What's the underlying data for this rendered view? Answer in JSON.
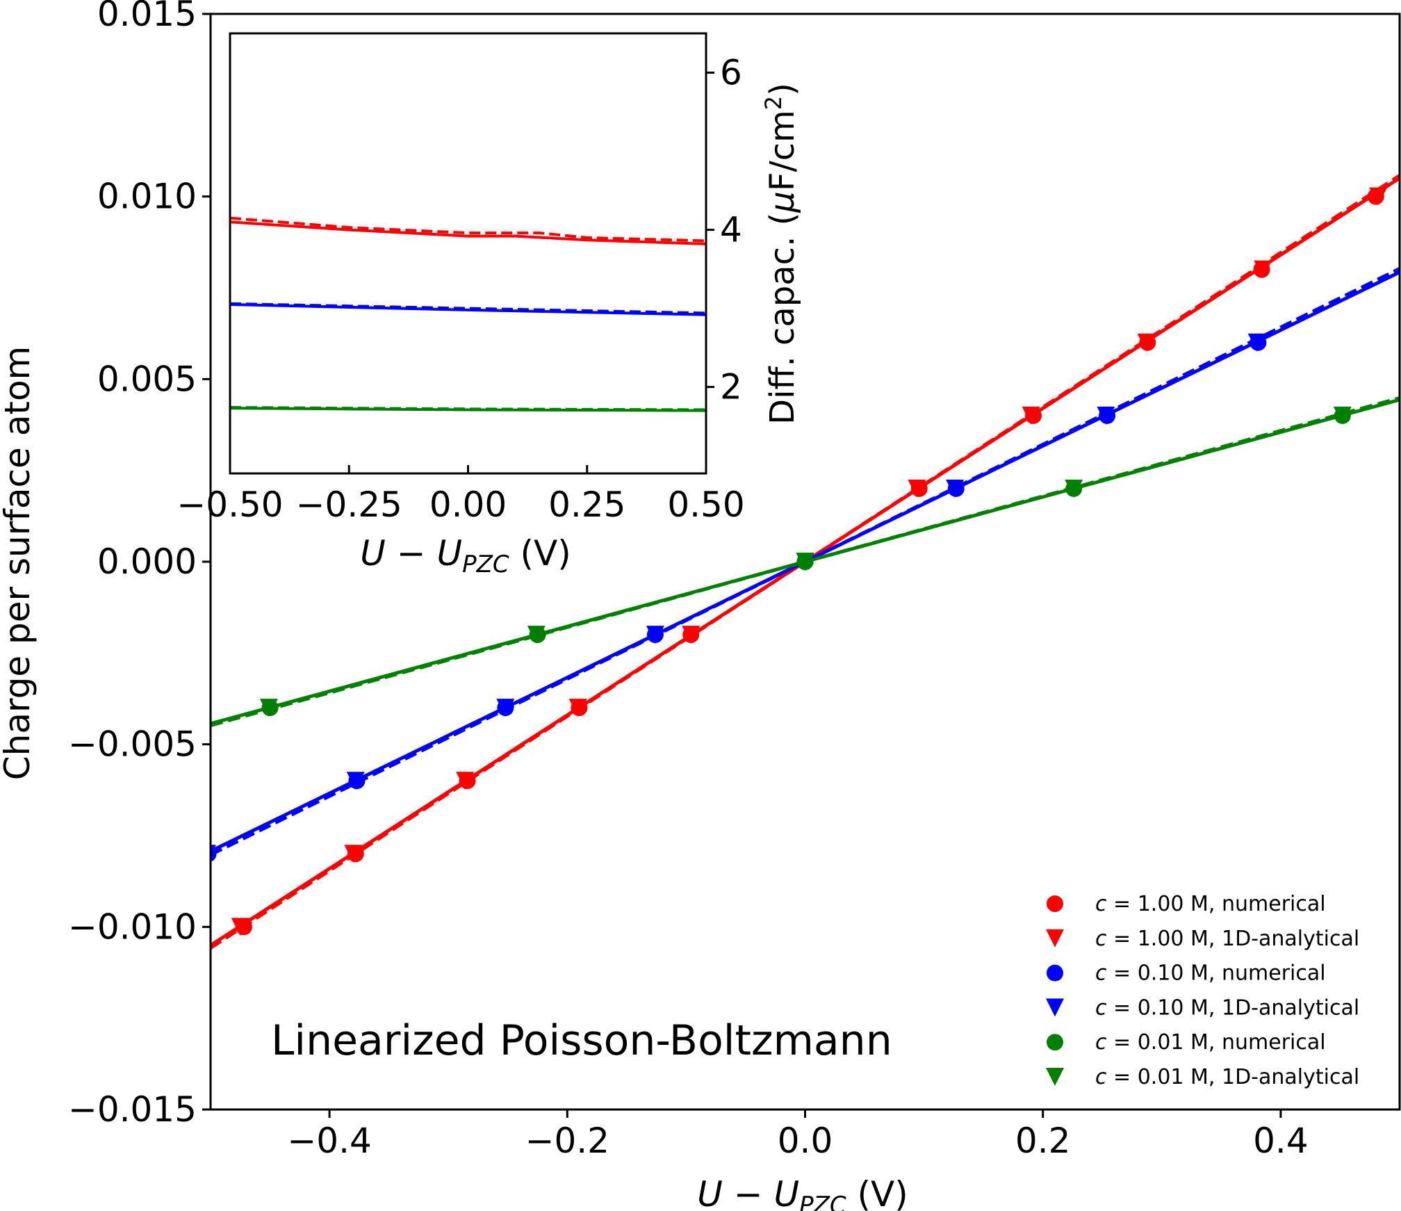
{
  "chart_data": [
    {
      "type": "line",
      "title": "",
      "annotation": "Linearized Poisson-Boltzmann",
      "xlabel": "U − U_PZC (V)",
      "xlabel_main": "U − U",
      "xlabel_sub": "PZC",
      "xlabel_unit": " (V)",
      "ylabel": "Charge per surface atom",
      "xlim": [
        -0.5,
        0.5
      ],
      "ylim": [
        -0.015,
        0.015
      ],
      "xticks": [
        -0.4,
        -0.2,
        0.0,
        0.2,
        0.4
      ],
      "xtick_labels": [
        "−0.4",
        "−0.2",
        "0.0",
        "0.2",
        "0.4"
      ],
      "yticks": [
        -0.015,
        -0.01,
        -0.005,
        0.0,
        0.005,
        0.01,
        0.015
      ],
      "ytick_labels": [
        "−0.015",
        "−0.010",
        "−0.005",
        "0.000",
        "0.005",
        "0.010",
        "0.015"
      ],
      "legend_position": "bottom-right",
      "series": [
        {
          "name": "c = 1.00 M, numerical",
          "conc": "1.00 M, numerical",
          "color": "#ff0000",
          "marker": "circle",
          "line": "solid",
          "x": [
            -0.472,
            -0.378,
            -0.284,
            -0.19,
            -0.096,
            0.0,
            0.096,
            0.192,
            0.288,
            0.384,
            0.48
          ],
          "y": [
            -0.01,
            -0.008,
            -0.006,
            -0.004,
            -0.002,
            0.0,
            0.002,
            0.004,
            0.006,
            0.008,
            0.01
          ]
        },
        {
          "name": "c = 1.00 M, 1D-analytical",
          "conc": "1.00 M, 1D-analytical",
          "color": "#ff0000",
          "marker": "triangle",
          "line": "dashed",
          "x": [
            -0.475,
            -0.38,
            -0.286,
            -0.191,
            -0.096,
            0.0,
            0.094,
            0.19,
            0.287,
            0.385,
            0.482
          ],
          "y": [
            -0.01,
            -0.008,
            -0.006,
            -0.004,
            -0.002,
            0.0,
            0.002,
            0.004,
            0.006,
            0.008,
            0.01
          ]
        },
        {
          "name": "c = 0.10 M, numerical",
          "conc": "0.10 M, numerical",
          "color": "#0000ff",
          "marker": "circle",
          "line": "solid",
          "x": [
            -0.502,
            -0.377,
            -0.252,
            -0.126,
            0.0,
            0.127,
            0.254,
            0.381
          ],
          "y": [
            -0.008,
            -0.006,
            -0.004,
            -0.002,
            0.0,
            0.002,
            0.004,
            0.006
          ]
        },
        {
          "name": "c = 0.10 M, 1D-analytical",
          "conc": "0.10 M, 1D-analytical",
          "color": "#0000ff",
          "marker": "triangle",
          "line": "dashed",
          "x": [
            -0.503,
            -0.378,
            -0.252,
            -0.126,
            0.0,
            0.126,
            0.253,
            0.38
          ],
          "y": [
            -0.008,
            -0.006,
            -0.004,
            -0.002,
            0.0,
            0.002,
            0.004,
            0.006
          ]
        },
        {
          "name": "c = 0.01 M, numerical",
          "conc": "0.01 M, numerical",
          "color": "#008000",
          "marker": "circle",
          "line": "solid",
          "x": [
            -0.45,
            -0.225,
            0.0,
            0.226,
            0.452
          ],
          "y": [
            -0.004,
            -0.002,
            0.0,
            0.002,
            0.004
          ]
        },
        {
          "name": "c = 0.01 M, 1D-analytical",
          "conc": "0.01 M, 1D-analytical",
          "color": "#008000",
          "marker": "triangle",
          "line": "dashed",
          "x": [
            -0.451,
            -0.226,
            0.0,
            0.226,
            0.452
          ],
          "y": [
            -0.004,
            -0.002,
            0.0,
            0.002,
            0.004
          ]
        }
      ]
    },
    {
      "type": "line",
      "title": "",
      "xlabel": "U − U_PZC (V)",
      "xlabel_main": "U − U",
      "xlabel_sub": "PZC",
      "xlabel_unit": " (V)",
      "ylabel": "Diff. capac. (μF/cm²)",
      "ylabel_main": "Diff. capac. (",
      "ylabel_mu": "μ",
      "ylabel_unit": "F/cm",
      "ylabel_sup": "2",
      "ylabel_close": ")",
      "y_axis_side": "right",
      "xlim": [
        -0.5,
        0.5
      ],
      "ylim": [
        0.9,
        6.5
      ],
      "xticks": [
        -0.5,
        -0.25,
        0.0,
        0.25,
        0.5
      ],
      "xtick_labels": [
        "−0.50",
        "−0.25",
        "0.00",
        "0.25",
        "0.50"
      ],
      "yticks": [
        2,
        4,
        6
      ],
      "ytick_labels": [
        "2",
        "4",
        "6"
      ],
      "series": [
        {
          "color": "#ff0000",
          "line": "solid",
          "x": [
            -0.5,
            -0.25,
            0.0,
            0.1,
            0.25,
            0.5
          ],
          "y": [
            4.1,
            4.0,
            3.92,
            3.92,
            3.87,
            3.82
          ]
        },
        {
          "color": "#ff0000",
          "line": "dashed",
          "x": [
            -0.5,
            -0.25,
            0.0,
            0.15,
            0.25,
            0.5
          ],
          "y": [
            4.15,
            4.03,
            3.96,
            3.96,
            3.9,
            3.86
          ]
        },
        {
          "color": "#0000ff",
          "line": "solid",
          "x": [
            -0.5,
            0.0,
            0.5
          ],
          "y": [
            3.05,
            2.98,
            2.92
          ]
        },
        {
          "color": "#0000ff",
          "line": "dashed",
          "x": [
            -0.5,
            0.0,
            0.5
          ],
          "y": [
            3.06,
            3.0,
            2.94
          ]
        },
        {
          "color": "#008000",
          "line": "solid",
          "x": [
            -0.5,
            0.0,
            0.5
          ],
          "y": [
            1.73,
            1.71,
            1.7
          ]
        },
        {
          "color": "#008000",
          "line": "dashed",
          "x": [
            -0.5,
            0.0,
            0.5
          ],
          "y": [
            1.74,
            1.72,
            1.71
          ]
        }
      ]
    }
  ]
}
